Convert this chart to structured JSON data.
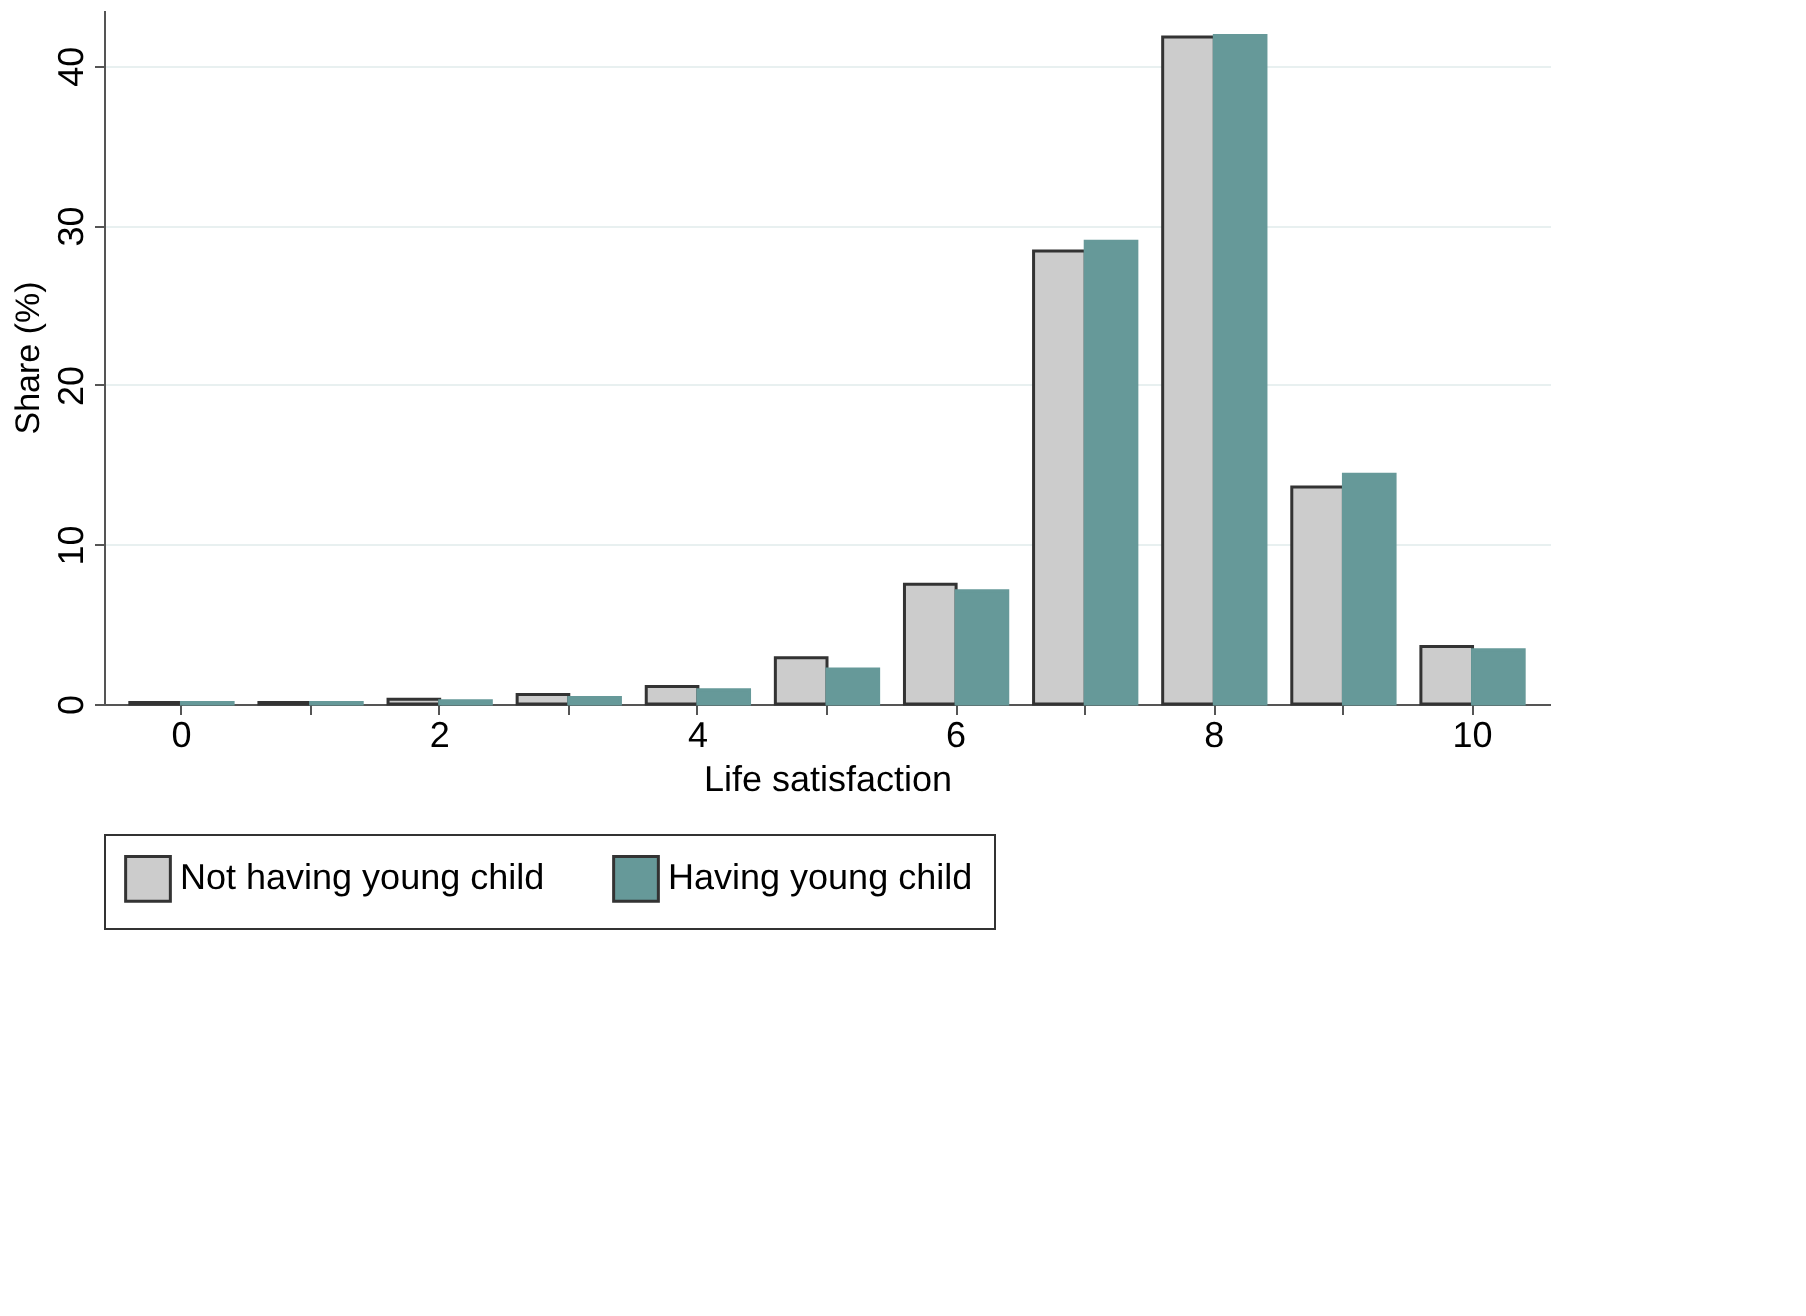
{
  "chart_data": {
    "type": "bar",
    "xlabel": "Life satisfaction",
    "ylabel": "Share (%)",
    "categories": [
      "0",
      null,
      "2",
      null,
      "4",
      null,
      "6",
      null,
      "8",
      null,
      "10"
    ],
    "series": [
      {
        "name": "Not having young child",
        "color": "#cccccc",
        "values": [
          0.1,
          0.1,
          0.3,
          0.6,
          1.1,
          2.9,
          7.5,
          28.4,
          41.8,
          13.6,
          3.6
        ]
      },
      {
        "name": "Having young child",
        "color": "#669999",
        "values": [
          0.1,
          0.1,
          0.2,
          0.4,
          0.9,
          2.2,
          7.1,
          29.0,
          41.9,
          14.4,
          3.4
        ]
      }
    ],
    "ylim": [
      0,
      43.5
    ],
    "yticks": [
      0,
      10,
      20,
      30,
      40
    ],
    "grid": "y",
    "legend": "bottom"
  }
}
